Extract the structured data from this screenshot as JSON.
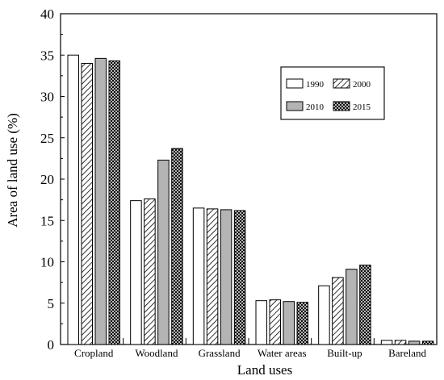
{
  "chart_data": {
    "type": "bar",
    "title": "",
    "xlabel": "Land uses",
    "ylabel": "Area of land use (%)",
    "ylim": [
      0,
      40
    ],
    "yticks": [
      0,
      5,
      10,
      15,
      20,
      25,
      30,
      35,
      40
    ],
    "categories": [
      "Cropland",
      "Woodland",
      "Grassland",
      "Water areas",
      "Built-up",
      "Bareland"
    ],
    "series": [
      {
        "name": "1990",
        "pattern": "white",
        "values": [
          35.0,
          17.4,
          16.5,
          5.3,
          7.1,
          0.5
        ]
      },
      {
        "name": "2000",
        "pattern": "diagonal-hatch",
        "values": [
          34.0,
          17.6,
          16.4,
          5.4,
          8.1,
          0.5
        ]
      },
      {
        "name": "2010",
        "pattern": "gray",
        "values": [
          34.6,
          22.3,
          16.3,
          5.2,
          9.1,
          0.4
        ]
      },
      {
        "name": "2015",
        "pattern": "crosshatch",
        "values": [
          34.3,
          23.7,
          16.2,
          5.1,
          9.6,
          0.4
        ]
      }
    ],
    "legend_position": "top-right",
    "grid": false
  }
}
